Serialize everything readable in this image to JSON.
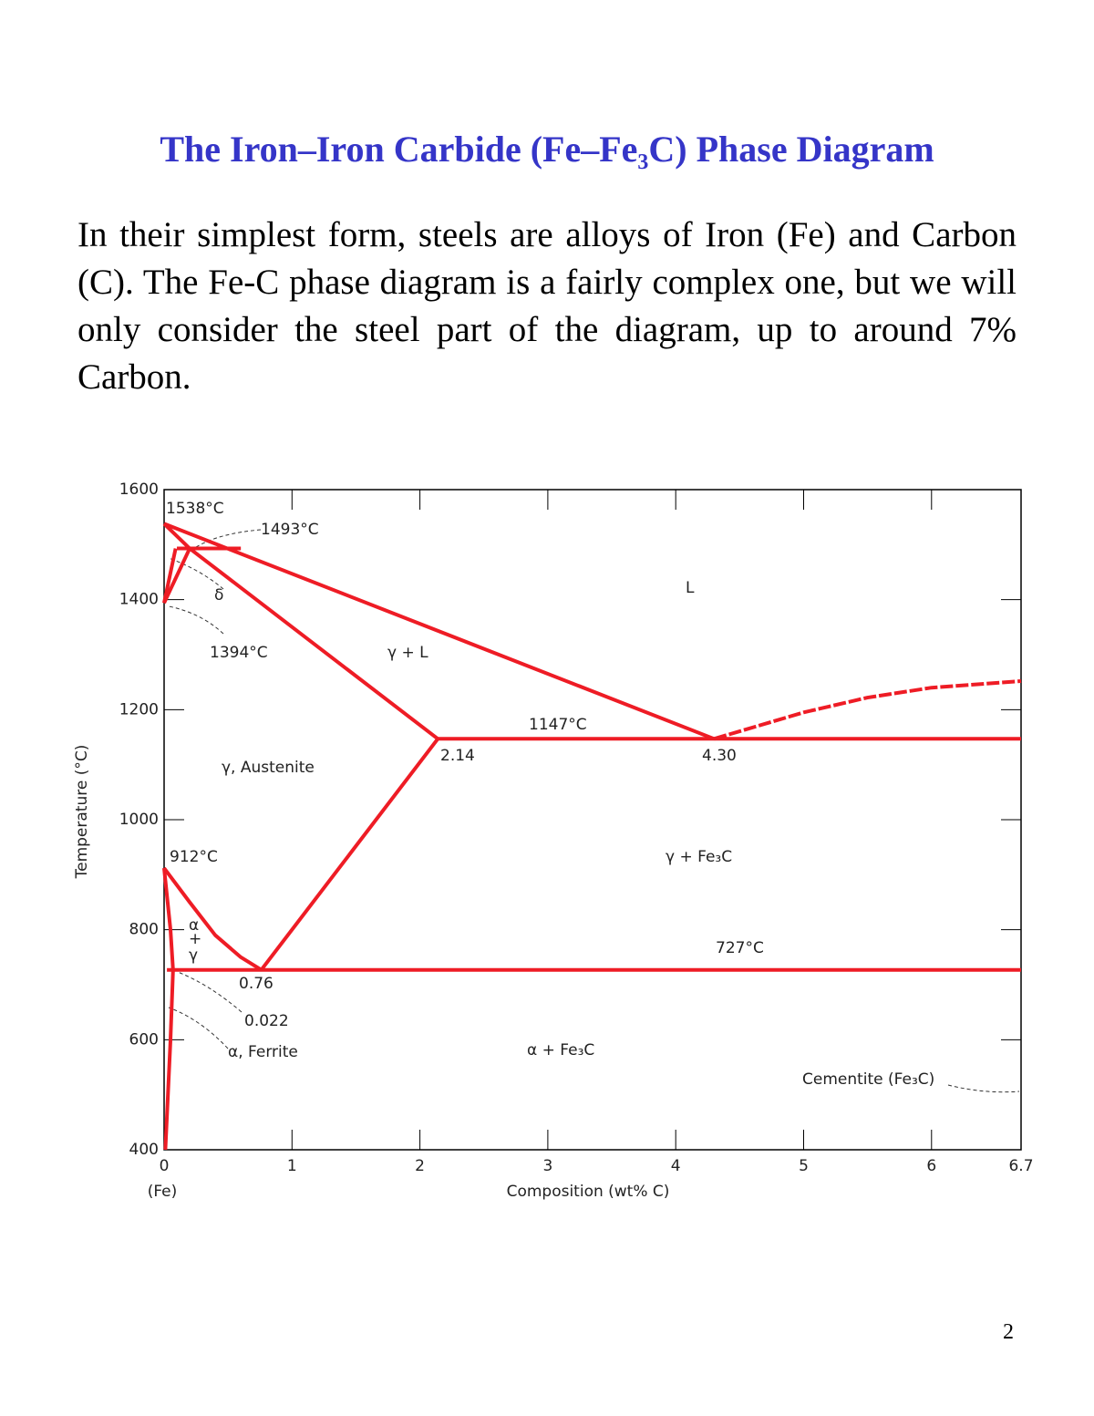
{
  "header": {
    "title": "The Iron–Iron Carbide (Fe–Fe₃C) Phase Diagram"
  },
  "paragraph": "In their simplest form, steels are alloys of Iron (Fe) and Carbon (C).  The Fe-C phase diagram is a fairly complex one, but we will only consider the steel part of the diagram, up to around 7% Carbon.",
  "chart_data": {
    "type": "line",
    "xlabel": "Composition (wt% C)",
    "xlabel_sub": "(Fe)",
    "ylabel": "Temperature (°C)",
    "xlim": [
      0,
      6.7
    ],
    "ylim": [
      400,
      1600
    ],
    "xticks": [
      0,
      1,
      2,
      3,
      4,
      5,
      6,
      6.7
    ],
    "yticks": [
      400,
      600,
      800,
      1000,
      1200,
      1400,
      1600
    ],
    "series": [
      {
        "color": "#ee1c25",
        "x": [
          0,
          4.3
        ],
        "y": [
          1538,
          1147
        ]
      },
      {
        "color": "#ee1c25",
        "dashed": true,
        "x": [
          4.3,
          5.0,
          5.5,
          6.0,
          6.7
        ],
        "y": [
          1147,
          1195,
          1222,
          1240,
          1252
        ]
      },
      {
        "color": "#ee1c25",
        "x": [
          0.1,
          0.6
        ],
        "y": [
          1493,
          1493
        ]
      },
      {
        "color": "#ee1c25",
        "x": [
          0,
          0.2
        ],
        "y": [
          1538,
          1493
        ]
      },
      {
        "color": "#ee1c25",
        "x": [
          0,
          0.2
        ],
        "y": [
          1394,
          1493
        ]
      },
      {
        "color": "#ee1c25",
        "x": [
          0,
          0.09
        ],
        "y": [
          1394,
          1493
        ]
      },
      {
        "color": "#ee1c25",
        "x": [
          0.2,
          2.14
        ],
        "y": [
          1493,
          1147
        ]
      },
      {
        "color": "#ee1c25",
        "x": [
          2.14,
          6.7
        ],
        "y": [
          1147,
          1147
        ]
      },
      {
        "color": "#ee1c25",
        "x": [
          0.76,
          2.14
        ],
        "y": [
          727,
          1147
        ]
      },
      {
        "color": "#ee1c25",
        "x": [
          0,
          0.2,
          0.4,
          0.6,
          0.76
        ],
        "y": [
          912,
          850,
          790,
          750,
          727
        ]
      },
      {
        "color": "#ee1c25",
        "x": [
          0.022,
          6.7
        ],
        "y": [
          727,
          727
        ]
      },
      {
        "color": "#ee1c25",
        "x": [
          0,
          0.05,
          0.07
        ],
        "y": [
          912,
          800,
          727
        ]
      },
      {
        "color": "#ee1c25",
        "x": [
          0.07,
          0.05,
          0.01
        ],
        "y": [
          727,
          600,
          400
        ]
      }
    ],
    "annotations": [
      "1538°C",
      "1493°C",
      "δ",
      "1394°C",
      "L",
      "γ + L",
      "1147°C",
      "2.14",
      "4.30",
      "γ, Austenite",
      "912°C",
      "γ + Fe₃C",
      "α",
      "+",
      "γ",
      "727°C",
      "0.76",
      "0.022",
      "α, Ferrite",
      "α + Fe₃C",
      "Cementite (Fe₃C)"
    ]
  },
  "page_number": "2"
}
